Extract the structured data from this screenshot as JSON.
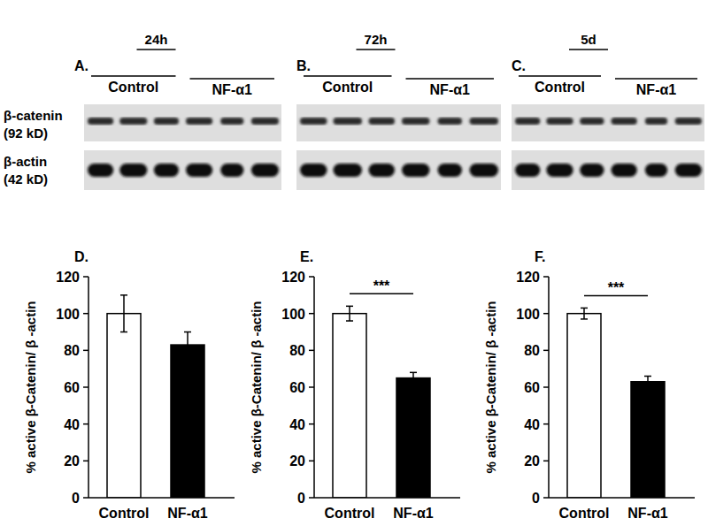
{
  "blots": {
    "rows": [
      {
        "name": "β-catenin",
        "size": "(92 kD)"
      },
      {
        "name": "β-actin",
        "size": "(42 kD)"
      }
    ],
    "panels": [
      {
        "label": "A.",
        "time": "24h",
        "groups": [
          "Control",
          "NF-α1"
        ]
      },
      {
        "label": "B.",
        "time": "72h",
        "groups": [
          "Control",
          "NF-α1"
        ]
      },
      {
        "label": "C.",
        "time": "5d",
        "groups": [
          "Control",
          "NF-α1"
        ]
      }
    ]
  },
  "chart_data": [
    {
      "type": "bar",
      "title": "D.",
      "categories": [
        "Control",
        "NF-α1"
      ],
      "values": [
        100,
        83
      ],
      "errors": [
        10,
        7
      ],
      "colors": [
        "#ffffff",
        "#000000"
      ],
      "y_label": "% active β-Catenin/ β -actin",
      "ylim": [
        0,
        120
      ],
      "yticks": [
        0,
        20,
        40,
        60,
        80,
        100,
        120
      ],
      "grid": false
    },
    {
      "type": "bar",
      "title": "E.",
      "categories": [
        "Control",
        "NF-α1"
      ],
      "values": [
        100,
        65
      ],
      "errors": [
        4,
        3
      ],
      "colors": [
        "#ffffff",
        "#000000"
      ],
      "y_label": "% active β-Catenin/ β -actin",
      "ylim": [
        0,
        120
      ],
      "yticks": [
        0,
        20,
        40,
        60,
        80,
        100,
        120
      ],
      "grid": false,
      "annotations": [
        "***"
      ]
    },
    {
      "type": "bar",
      "title": "F.",
      "categories": [
        "Control",
        "NF-α1"
      ],
      "values": [
        100,
        63
      ],
      "errors": [
        3,
        3
      ],
      "colors": [
        "#ffffff",
        "#000000"
      ],
      "y_label": "% active β-Catenin/ β -actin",
      "ylim": [
        0,
        120
      ],
      "yticks": [
        0,
        20,
        40,
        60,
        80,
        100,
        120
      ],
      "grid": false,
      "annotations": [
        "***"
      ]
    }
  ]
}
